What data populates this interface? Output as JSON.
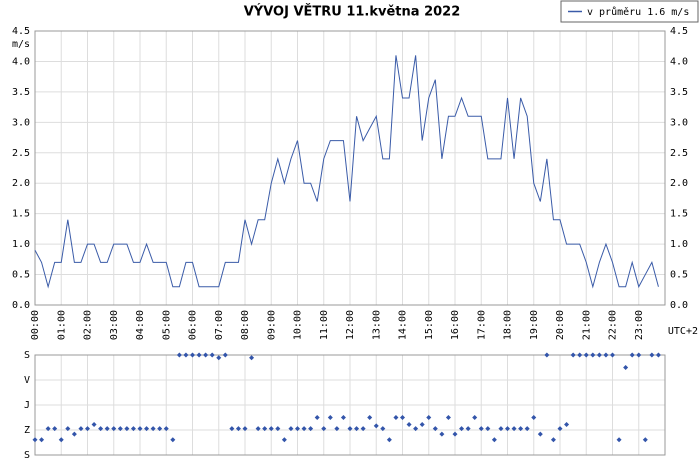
{
  "chart_data": [
    {
      "type": "line",
      "title": "VÝVOJ VĚTRU  11.května 2022",
      "y_label": "m/s",
      "x_label": "UTC+2",
      "legend": "top-right",
      "grid": true,
      "x": [
        0,
        15,
        30,
        45,
        60,
        75,
        90,
        105,
        120,
        135,
        150,
        165,
        180,
        195,
        210,
        225,
        240,
        255,
        270,
        285,
        300,
        315,
        330,
        345,
        360,
        375,
        390,
        405,
        420,
        435,
        450,
        465,
        480,
        495,
        510,
        525,
        540,
        555,
        570,
        585,
        600,
        615,
        630,
        645,
        660,
        675,
        690,
        705,
        720,
        735,
        750,
        765,
        780,
        795,
        810,
        825,
        840,
        855,
        870,
        885,
        900,
        915,
        930,
        945,
        960,
        975,
        990,
        1005,
        1020,
        1035,
        1050,
        1065,
        1080,
        1095,
        1110,
        1125,
        1140,
        1155,
        1170,
        1185,
        1200,
        1215,
        1230,
        1245,
        1260,
        1275,
        1290,
        1305,
        1320,
        1335,
        1350,
        1365,
        1380,
        1395,
        1410,
        1425
      ],
      "series": [
        {
          "name": "v průměru 1.6 m/s",
          "color": "#3a5ba8",
          "values": [
            0.9,
            0.7,
            0.3,
            0.7,
            0.7,
            1.4,
            0.7,
            0.7,
            1.0,
            1.0,
            0.7,
            0.7,
            1.0,
            1.0,
            1.0,
            0.7,
            0.7,
            1.0,
            0.7,
            0.7,
            0.7,
            0.3,
            0.3,
            0.7,
            0.7,
            0.3,
            0.3,
            0.3,
            0.3,
            0.7,
            0.7,
            0.7,
            1.4,
            1.0,
            1.4,
            1.4,
            2.0,
            2.4,
            2.0,
            2.4,
            2.7,
            2.0,
            2.0,
            1.7,
            2.4,
            2.7,
            2.7,
            2.7,
            1.7,
            3.1,
            2.7,
            2.9,
            3.1,
            2.4,
            2.4,
            4.1,
            3.4,
            3.4,
            4.1,
            2.7,
            3.4,
            3.7,
            2.4,
            3.1,
            3.1,
            3.4,
            3.1,
            3.1,
            3.1,
            2.4,
            2.4,
            2.4,
            3.4,
            2.4,
            3.4,
            3.1,
            2.0,
            1.7,
            2.4,
            1.4,
            1.4,
            1.0,
            1.0,
            1.0,
            0.7,
            0.3,
            0.7,
            1.0,
            0.7,
            0.3,
            0.3,
            0.7,
            0.3,
            0.5,
            0.7,
            0.3
          ]
        }
      ],
      "xlim": [
        0,
        1440
      ],
      "xticks": [
        {
          "value": 0,
          "label": "00:00"
        },
        {
          "value": 60,
          "label": "01:00"
        },
        {
          "value": 120,
          "label": "02:00"
        },
        {
          "value": 180,
          "label": "03:00"
        },
        {
          "value": 240,
          "label": "04:00"
        },
        {
          "value": 300,
          "label": "05:00"
        },
        {
          "value": 360,
          "label": "06:00"
        },
        {
          "value": 420,
          "label": "07:00"
        },
        {
          "value": 480,
          "label": "08:00"
        },
        {
          "value": 540,
          "label": "09:00"
        },
        {
          "value": 600,
          "label": "10:00"
        },
        {
          "value": 660,
          "label": "11:00"
        },
        {
          "value": 720,
          "label": "12:00"
        },
        {
          "value": 780,
          "label": "13:00"
        },
        {
          "value": 840,
          "label": "14:00"
        },
        {
          "value": 900,
          "label": "15:00"
        },
        {
          "value": 960,
          "label": "16:00"
        },
        {
          "value": 1020,
          "label": "17:00"
        },
        {
          "value": 1080,
          "label": "18:00"
        },
        {
          "value": 1140,
          "label": "19:00"
        },
        {
          "value": 1200,
          "label": "20:00"
        },
        {
          "value": 1260,
          "label": "21:00"
        },
        {
          "value": 1320,
          "label": "22:00"
        },
        {
          "value": 1380,
          "label": "23:00"
        }
      ],
      "ylim": [
        0,
        4.5
      ],
      "yticks": [
        {
          "value": 0,
          "label": "0.0"
        },
        0.5,
        {
          "value": 1,
          "label": "1.0"
        },
        1.5,
        {
          "value": 2,
          "label": "2.0"
        },
        2.5,
        {
          "value": 3,
          "label": "3.0"
        },
        3.5,
        {
          "value": 4,
          "label": "4.0"
        },
        4.5
      ]
    },
    {
      "type": "scatter",
      "grid": true,
      "color": "#3355aa",
      "x": [
        0,
        15,
        30,
        45,
        60,
        75,
        90,
        105,
        120,
        135,
        150,
        165,
        180,
        195,
        210,
        225,
        240,
        255,
        270,
        285,
        300,
        315,
        330,
        345,
        360,
        375,
        390,
        405,
        420,
        435,
        450,
        465,
        480,
        495,
        510,
        525,
        540,
        555,
        570,
        585,
        600,
        615,
        630,
        645,
        660,
        675,
        690,
        705,
        720,
        735,
        750,
        765,
        780,
        795,
        810,
        825,
        840,
        855,
        870,
        885,
        900,
        915,
        930,
        945,
        960,
        975,
        990,
        1005,
        1020,
        1035,
        1050,
        1065,
        1080,
        1095,
        1110,
        1125,
        1140,
        1155,
        1170,
        1185,
        1200,
        1215,
        1230,
        1245,
        1260,
        1275,
        1290,
        1305,
        1320,
        1335,
        1350,
        1365,
        1380,
        1395,
        1410,
        1425
      ],
      "values": [
        305,
        305,
        265,
        265,
        305,
        265,
        285,
        265,
        265,
        250,
        265,
        265,
        265,
        265,
        265,
        265,
        265,
        265,
        265,
        265,
        265,
        305,
        0,
        0,
        0,
        0,
        0,
        0,
        10,
        0,
        265,
        265,
        265,
        10,
        265,
        265,
        265,
        265,
        305,
        265,
        265,
        265,
        265,
        225,
        265,
        225,
        265,
        225,
        265,
        265,
        265,
        225,
        255,
        265,
        305,
        225,
        225,
        250,
        265,
        250,
        225,
        265,
        285,
        225,
        285,
        265,
        265,
        225,
        265,
        265,
        305,
        265,
        265,
        265,
        265,
        265,
        225,
        285,
        0,
        305,
        265,
        250,
        0,
        0,
        0,
        0,
        0,
        0,
        0,
        305,
        45,
        0,
        0,
        305,
        0,
        0
      ],
      "xlim": [
        0,
        1440
      ],
      "xticks": [
        0,
        60,
        120,
        180,
        240,
        300,
        360,
        420,
        480,
        540,
        600,
        660,
        720,
        780,
        840,
        900,
        960,
        1020,
        1080,
        1140,
        1200,
        1260,
        1320,
        1380
      ],
      "ylim": [
        360,
        0
      ],
      "yticks": [
        {
          "value": 0,
          "label": "S"
        },
        {
          "value": 90,
          "label": "V"
        },
        {
          "value": 180,
          "label": "J"
        },
        {
          "value": 270,
          "label": "Z"
        },
        {
          "value": 360,
          "label": "S"
        }
      ]
    }
  ]
}
